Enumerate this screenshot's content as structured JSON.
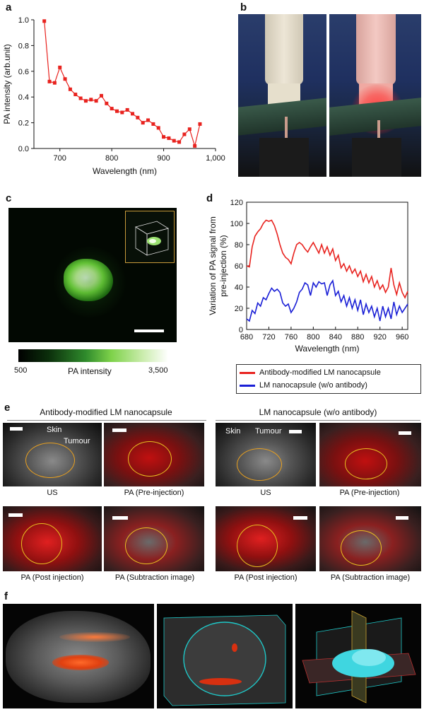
{
  "panels": {
    "a": "a",
    "b": "b",
    "c": "c",
    "d": "d",
    "e": "e",
    "f": "f"
  },
  "chart_data": [
    {
      "type": "line",
      "panel": "a",
      "xlabel": "Wavelength (nm)",
      "ylabel": "PA intensity (arb.unit)",
      "xlim": [
        650,
        1000
      ],
      "ylim": [
        0,
        1.0
      ],
      "xticks": [
        "700",
        "800",
        "900",
        "1,000"
      ],
      "yticks": [
        "0.0",
        "0.2",
        "0.4",
        "0.6",
        "0.8",
        "1.0"
      ],
      "color": "#e8231f",
      "series": [
        {
          "x": [
            670,
            680,
            690,
            700,
            710,
            720,
            730,
            740,
            750,
            760,
            770,
            780,
            790,
            800,
            810,
            820,
            830,
            840,
            850,
            860,
            870,
            880,
            890,
            900,
            910,
            920,
            930,
            940,
            950,
            960,
            970
          ],
          "values": [
            0.99,
            0.52,
            0.51,
            0.63,
            0.54,
            0.46,
            0.42,
            0.39,
            0.37,
            0.38,
            0.37,
            0.41,
            0.35,
            0.31,
            0.29,
            0.28,
            0.3,
            0.27,
            0.24,
            0.2,
            0.22,
            0.19,
            0.16,
            0.09,
            0.08,
            0.06,
            0.05,
            0.11,
            0.15,
            0.02,
            0.19
          ]
        }
      ]
    },
    {
      "type": "line",
      "panel": "d",
      "xlabel": "Wavelength (nm)",
      "ylabel": "Variation of PA signal from pre-injection (%)",
      "xlim": [
        680,
        970
      ],
      "ylim": [
        0,
        120
      ],
      "xticks": [
        "680",
        "720",
        "760",
        "800",
        "840",
        "880",
        "920",
        "960"
      ],
      "yticks": [
        "0",
        "20",
        "40",
        "60",
        "80",
        "100",
        "120"
      ],
      "series": [
        {
          "name": "Antibody-modified LM nanocapsule",
          "color": "#e8231f",
          "x": [
            680,
            685,
            690,
            695,
            700,
            705,
            710,
            715,
            720,
            725,
            730,
            735,
            740,
            745,
            750,
            755,
            760,
            765,
            770,
            775,
            780,
            785,
            790,
            795,
            800,
            805,
            810,
            815,
            820,
            825,
            830,
            835,
            840,
            845,
            850,
            855,
            860,
            865,
            870,
            875,
            880,
            885,
            890,
            895,
            900,
            905,
            910,
            915,
            920,
            925,
            930,
            935,
            940,
            945,
            950,
            955,
            960,
            965,
            970
          ],
          "values": [
            60,
            59,
            78,
            88,
            92,
            95,
            100,
            103,
            102,
            103,
            98,
            90,
            80,
            72,
            68,
            66,
            62,
            72,
            80,
            82,
            80,
            76,
            73,
            78,
            82,
            77,
            72,
            80,
            72,
            78,
            70,
            76,
            65,
            70,
            58,
            62,
            55,
            60,
            53,
            57,
            50,
            55,
            45,
            52,
            44,
            50,
            40,
            46,
            38,
            42,
            35,
            40,
            58,
            42,
            33,
            44,
            35,
            30,
            36
          ]
        },
        {
          "name": "LM nanocapsule (w/o antibody)",
          "color": "#1a1fd6",
          "x": [
            680,
            685,
            690,
            695,
            700,
            705,
            710,
            715,
            720,
            725,
            730,
            735,
            740,
            745,
            750,
            755,
            760,
            765,
            770,
            775,
            780,
            785,
            790,
            795,
            800,
            805,
            810,
            815,
            820,
            825,
            830,
            835,
            840,
            845,
            850,
            855,
            860,
            865,
            870,
            875,
            880,
            885,
            890,
            895,
            900,
            905,
            910,
            915,
            920,
            925,
            930,
            935,
            940,
            945,
            950,
            955,
            960,
            965,
            970
          ],
          "values": [
            10,
            8,
            18,
            15,
            25,
            22,
            30,
            28,
            34,
            39,
            36,
            38,
            35,
            25,
            22,
            24,
            16,
            20,
            26,
            35,
            38,
            44,
            42,
            32,
            44,
            40,
            45,
            43,
            44,
            32,
            42,
            46,
            32,
            36,
            26,
            32,
            22,
            30,
            20,
            28,
            18,
            28,
            14,
            24,
            16,
            22,
            12,
            20,
            8,
            22,
            12,
            20,
            10,
            26,
            14,
            22,
            16,
            20,
            24
          ]
        }
      ]
    }
  ],
  "colorbar": {
    "min_label": "500",
    "title": "PA intensity",
    "max_label": "3,500"
  },
  "legend_d": {
    "item1": "Antibody-modified LM nanocapsule",
    "item2": "LM nanocapsule (w/o antibody)"
  },
  "panel_e": {
    "left_title": "Antibody-modified LM nanocapsule",
    "right_title": "LM nanocapsule (w/o antibody)",
    "skin_label": "Skin",
    "tumour_label": "Tumour",
    "captions": {
      "us": "US",
      "pre": "PA (Pre-injection)",
      "post": "PA (Post injection)",
      "sub": "PA (Subtraction image)"
    }
  }
}
